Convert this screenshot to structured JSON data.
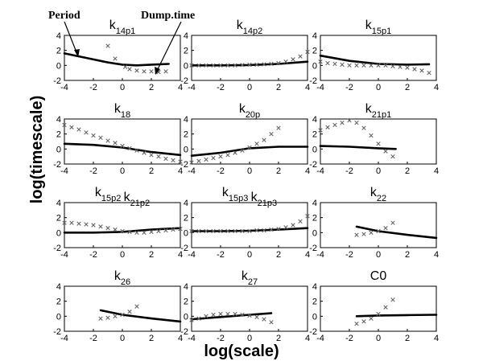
{
  "figure": {
    "xlabel": "log(scale)",
    "ylabel": "log(timescale)",
    "annotations": [
      {
        "text": "Period"
      },
      {
        "text": "Dump.time"
      }
    ]
  },
  "chart_data": [
    {
      "type": "line",
      "title_main": "k",
      "title_sub": "14p1",
      "xlim": [
        -4,
        4
      ],
      "ylim": [
        -2,
        4
      ],
      "xticks": [
        -4,
        -2,
        0,
        2,
        4
      ],
      "yticks": [
        -2,
        0,
        2,
        4
      ],
      "series": [
        {
          "kind": "line",
          "x": [
            -4,
            -3,
            -2,
            -1,
            0,
            1,
            2,
            3.2
          ],
          "y": [
            1.6,
            1.2,
            0.8,
            0.4,
            0.1,
            0.0,
            0.1,
            0.2
          ]
        },
        {
          "kind": "marker",
          "x": [
            -1.0,
            -0.5,
            0.2,
            0.5,
            1.0,
            1.5,
            2.0,
            2.5,
            3.0
          ],
          "y": [
            2.6,
            0.9,
            -0.2,
            -0.5,
            -0.7,
            -0.8,
            -0.8,
            -0.9,
            -0.8
          ]
        }
      ]
    },
    {
      "type": "line",
      "title_main": "k",
      "title_sub": "14p2",
      "xlim": [
        -4,
        4
      ],
      "ylim": [
        -2,
        4
      ],
      "xticks": [
        -4,
        -2,
        0,
        2,
        4
      ],
      "yticks": [
        -2,
        0,
        2,
        4
      ],
      "series": [
        {
          "kind": "line",
          "x": [
            -4,
            -2,
            0,
            2,
            4
          ],
          "y": [
            0.0,
            0.0,
            0.05,
            0.2,
            0.5
          ]
        },
        {
          "kind": "marker",
          "x": [
            -4,
            -3.5,
            -3,
            -2.5,
            -2,
            -1.5,
            -1,
            -0.5,
            0,
            0.5,
            1,
            1.5,
            2,
            2.5,
            3,
            3.5,
            4
          ],
          "y": [
            0.0,
            0.0,
            0.0,
            0.0,
            0.0,
            0.0,
            0.0,
            0.05,
            0.1,
            0.1,
            0.15,
            0.2,
            0.3,
            0.5,
            0.8,
            1.2,
            1.8
          ]
        }
      ]
    },
    {
      "type": "line",
      "title_main": "k",
      "title_sub": "15p1",
      "xlim": [
        -4,
        4
      ],
      "ylim": [
        -2,
        4
      ],
      "xticks": [
        -4,
        -2,
        0,
        2,
        4
      ],
      "yticks": [
        -2,
        0,
        2,
        4
      ],
      "series": [
        {
          "kind": "line",
          "x": [
            -4,
            -2,
            0,
            2,
            3.5
          ],
          "y": [
            1.3,
            0.6,
            0.2,
            0.1,
            0.15
          ]
        },
        {
          "kind": "marker",
          "x": [
            -4,
            -3.5,
            -3,
            -2.5,
            -2,
            -1.5,
            -1,
            -0.5,
            0,
            0.5,
            1,
            1.5,
            2,
            2.5,
            3,
            3.5
          ],
          "y": [
            0.5,
            0.3,
            0.2,
            0.1,
            0.0,
            0.0,
            0.0,
            0.0,
            0.0,
            0.0,
            -0.1,
            -0.2,
            -0.3,
            -0.5,
            -0.7,
            -1.0
          ]
        }
      ]
    },
    {
      "type": "line",
      "title_main": "k",
      "title_sub": "18",
      "xlim": [
        -4,
        4
      ],
      "ylim": [
        -2,
        4
      ],
      "xticks": [
        -4,
        -2,
        0,
        2,
        4
      ],
      "yticks": [
        -2,
        0,
        2,
        4
      ],
      "series": [
        {
          "kind": "line",
          "x": [
            -4,
            -2,
            0,
            2,
            4
          ],
          "y": [
            0.7,
            0.55,
            0.2,
            -0.4,
            -0.8
          ]
        },
        {
          "kind": "marker",
          "x": [
            -4,
            -3.5,
            -3,
            -2.5,
            -2,
            -1.5,
            -1,
            -0.5,
            0,
            0.5,
            1,
            1.5,
            2,
            2.5,
            3,
            3.5,
            4
          ],
          "y": [
            3.2,
            2.9,
            2.6,
            2.2,
            1.8,
            1.5,
            1.1,
            0.8,
            0.4,
            0.1,
            -0.2,
            -0.5,
            -0.8,
            -1.0,
            -1.3,
            -1.5,
            -1.7
          ]
        }
      ]
    },
    {
      "type": "line",
      "title_main": "k",
      "title_sub": "20p",
      "xlim": [
        -4,
        4
      ],
      "ylim": [
        -2,
        4
      ],
      "xticks": [
        -4,
        -2,
        0,
        2,
        4
      ],
      "yticks": [
        -2,
        0,
        2,
        4
      ],
      "series": [
        {
          "kind": "line",
          "x": [
            -4,
            -2,
            0,
            2,
            4
          ],
          "y": [
            -0.9,
            -0.5,
            0.1,
            0.3,
            0.3
          ]
        },
        {
          "kind": "marker",
          "x": [
            -4,
            -3.5,
            -3,
            -2.5,
            -2,
            -1.5,
            -1,
            -0.5,
            0,
            0.5,
            1,
            1.5,
            2
          ],
          "y": [
            -1.8,
            -1.6,
            -1.4,
            -1.2,
            -1.0,
            -0.8,
            -0.5,
            -0.2,
            0.2,
            0.7,
            1.2,
            2.0,
            2.8
          ]
        }
      ]
    },
    {
      "type": "line",
      "title_main": "k",
      "title_sub": "21p1",
      "xlim": [
        -4,
        4
      ],
      "ylim": [
        -2,
        4
      ],
      "xticks": [
        -4,
        -2,
        0,
        2,
        4
      ],
      "yticks": [
        -2,
        0,
        2,
        4
      ],
      "series": [
        {
          "kind": "line",
          "x": [
            -4,
            -2,
            0,
            1.2
          ],
          "y": [
            0.4,
            0.3,
            0.1,
            0.0
          ]
        },
        {
          "kind": "marker",
          "x": [
            -4,
            -3.5,
            -3,
            -2.5,
            -2,
            -1.5,
            -1,
            -0.5,
            0,
            0.5,
            1
          ],
          "y": [
            2.5,
            2.9,
            3.2,
            3.5,
            3.8,
            3.5,
            2.8,
            1.8,
            0.7,
            -0.3,
            -1.0
          ]
        }
      ]
    },
    {
      "type": "line",
      "title_main": "k",
      "title_sub": "15p2",
      "title_main_2": "k",
      "title_sub_2": "21p2",
      "xlim": [
        -4,
        4
      ],
      "ylim": [
        -2,
        4
      ],
      "xticks": [
        -4,
        -2,
        0,
        2,
        4
      ],
      "yticks": [
        -2,
        0,
        2,
        4
      ],
      "series": [
        {
          "kind": "line",
          "x": [
            -4,
            -2,
            0,
            2,
            4
          ],
          "y": [
            0.0,
            0.0,
            0.1,
            0.4,
            0.6
          ]
        },
        {
          "kind": "marker",
          "x": [
            -4,
            -3.5,
            -3,
            -2.5,
            -2,
            -1.5,
            -1,
            -0.5,
            0,
            0.5,
            1,
            1.5,
            2,
            2.5,
            3,
            3.5,
            4
          ],
          "y": [
            1.3,
            1.3,
            1.2,
            1.1,
            1.0,
            0.8,
            0.6,
            0.4,
            0.2,
            0.1,
            0.0,
            0.0,
            0.1,
            0.2,
            0.3,
            0.4,
            0.5
          ]
        }
      ]
    },
    {
      "type": "line",
      "title_main": "k",
      "title_sub": "15p3",
      "title_main_2": "k",
      "title_sub_2": "21p3",
      "xlim": [
        -4,
        4
      ],
      "ylim": [
        -2,
        4
      ],
      "xticks": [
        -4,
        -2,
        0,
        2,
        4
      ],
      "yticks": [
        -2,
        0,
        2,
        4
      ],
      "series": [
        {
          "kind": "line",
          "x": [
            -4,
            -2,
            0,
            2,
            4
          ],
          "y": [
            0.2,
            0.2,
            0.25,
            0.4,
            0.6
          ]
        },
        {
          "kind": "marker",
          "x": [
            -4,
            -3.5,
            -3,
            -2.5,
            -2,
            -1.5,
            -1,
            -0.5,
            0,
            0.5,
            1,
            1.5,
            2,
            2.5,
            3,
            3.5,
            4
          ],
          "y": [
            0.2,
            0.2,
            0.2,
            0.2,
            0.2,
            0.2,
            0.2,
            0.2,
            0.2,
            0.3,
            0.3,
            0.4,
            0.5,
            0.7,
            1.0,
            1.5,
            2.2
          ]
        }
      ]
    },
    {
      "type": "line",
      "title_main": "k",
      "title_sub": "22",
      "xlim": [
        -4,
        4
      ],
      "ylim": [
        -2,
        4
      ],
      "xticks": [
        -4,
        -2,
        0,
        2,
        4
      ],
      "yticks": [
        -2,
        0,
        2,
        4
      ],
      "series": [
        {
          "kind": "line",
          "x": [
            -1.5,
            0,
            2,
            4
          ],
          "y": [
            0.8,
            0.2,
            -0.3,
            -0.7
          ]
        },
        {
          "kind": "marker",
          "x": [
            -1.5,
            -1.0,
            -0.5,
            0.0,
            0.5,
            1.0
          ],
          "y": [
            -0.3,
            -0.2,
            0.0,
            0.2,
            0.6,
            1.3
          ]
        }
      ]
    },
    {
      "type": "line",
      "title_main": "k",
      "title_sub": "26",
      "xlim": [
        -4,
        4
      ],
      "ylim": [
        -2,
        4
      ],
      "xticks": [
        -4,
        -2,
        0,
        2,
        4
      ],
      "yticks": [
        -2,
        0,
        2,
        4
      ],
      "series": [
        {
          "kind": "line",
          "x": [
            -1.5,
            0,
            2,
            4
          ],
          "y": [
            0.8,
            0.2,
            -0.3,
            -0.7
          ]
        },
        {
          "kind": "marker",
          "x": [
            -1.5,
            -1.0,
            -0.5,
            0.0,
            0.5,
            1.0
          ],
          "y": [
            -0.3,
            -0.2,
            0.0,
            0.2,
            0.6,
            1.3
          ]
        }
      ]
    },
    {
      "type": "line",
      "title_main": "k",
      "title_sub": "27",
      "xlim": [
        -4,
        4
      ],
      "ylim": [
        -2,
        4
      ],
      "xticks": [
        -4,
        -2,
        0,
        2,
        4
      ],
      "yticks": [
        -2,
        0,
        2,
        4
      ],
      "series": [
        {
          "kind": "line",
          "x": [
            -4,
            -2,
            0,
            1.5
          ],
          "y": [
            -0.4,
            -0.1,
            0.2,
            0.4
          ]
        },
        {
          "kind": "marker",
          "x": [
            -4,
            -3.5,
            -3,
            -2.5,
            -2,
            -1.5,
            -1,
            -0.5,
            0,
            0.5,
            1,
            1.5
          ],
          "y": [
            -0.5,
            -0.3,
            0.0,
            0.2,
            0.3,
            0.3,
            0.3,
            0.2,
            0.1,
            -0.1,
            -0.4,
            -0.8
          ]
        }
      ]
    },
    {
      "type": "line",
      "title_main": "C0",
      "title_sub": "",
      "xlim": [
        -4,
        4
      ],
      "ylim": [
        -2,
        4
      ],
      "xticks": [
        -4,
        -2,
        0,
        2,
        4
      ],
      "yticks": [
        -2,
        0,
        2,
        4
      ],
      "series": [
        {
          "kind": "line",
          "x": [
            -1.5,
            0,
            2,
            4
          ],
          "y": [
            0.0,
            0.1,
            0.15,
            0.2
          ]
        },
        {
          "kind": "marker",
          "x": [
            -1.5,
            -1.0,
            -0.5,
            0.0,
            0.5,
            1.0
          ],
          "y": [
            -1.0,
            -0.7,
            -0.3,
            0.3,
            1.2,
            2.2
          ]
        }
      ]
    }
  ]
}
